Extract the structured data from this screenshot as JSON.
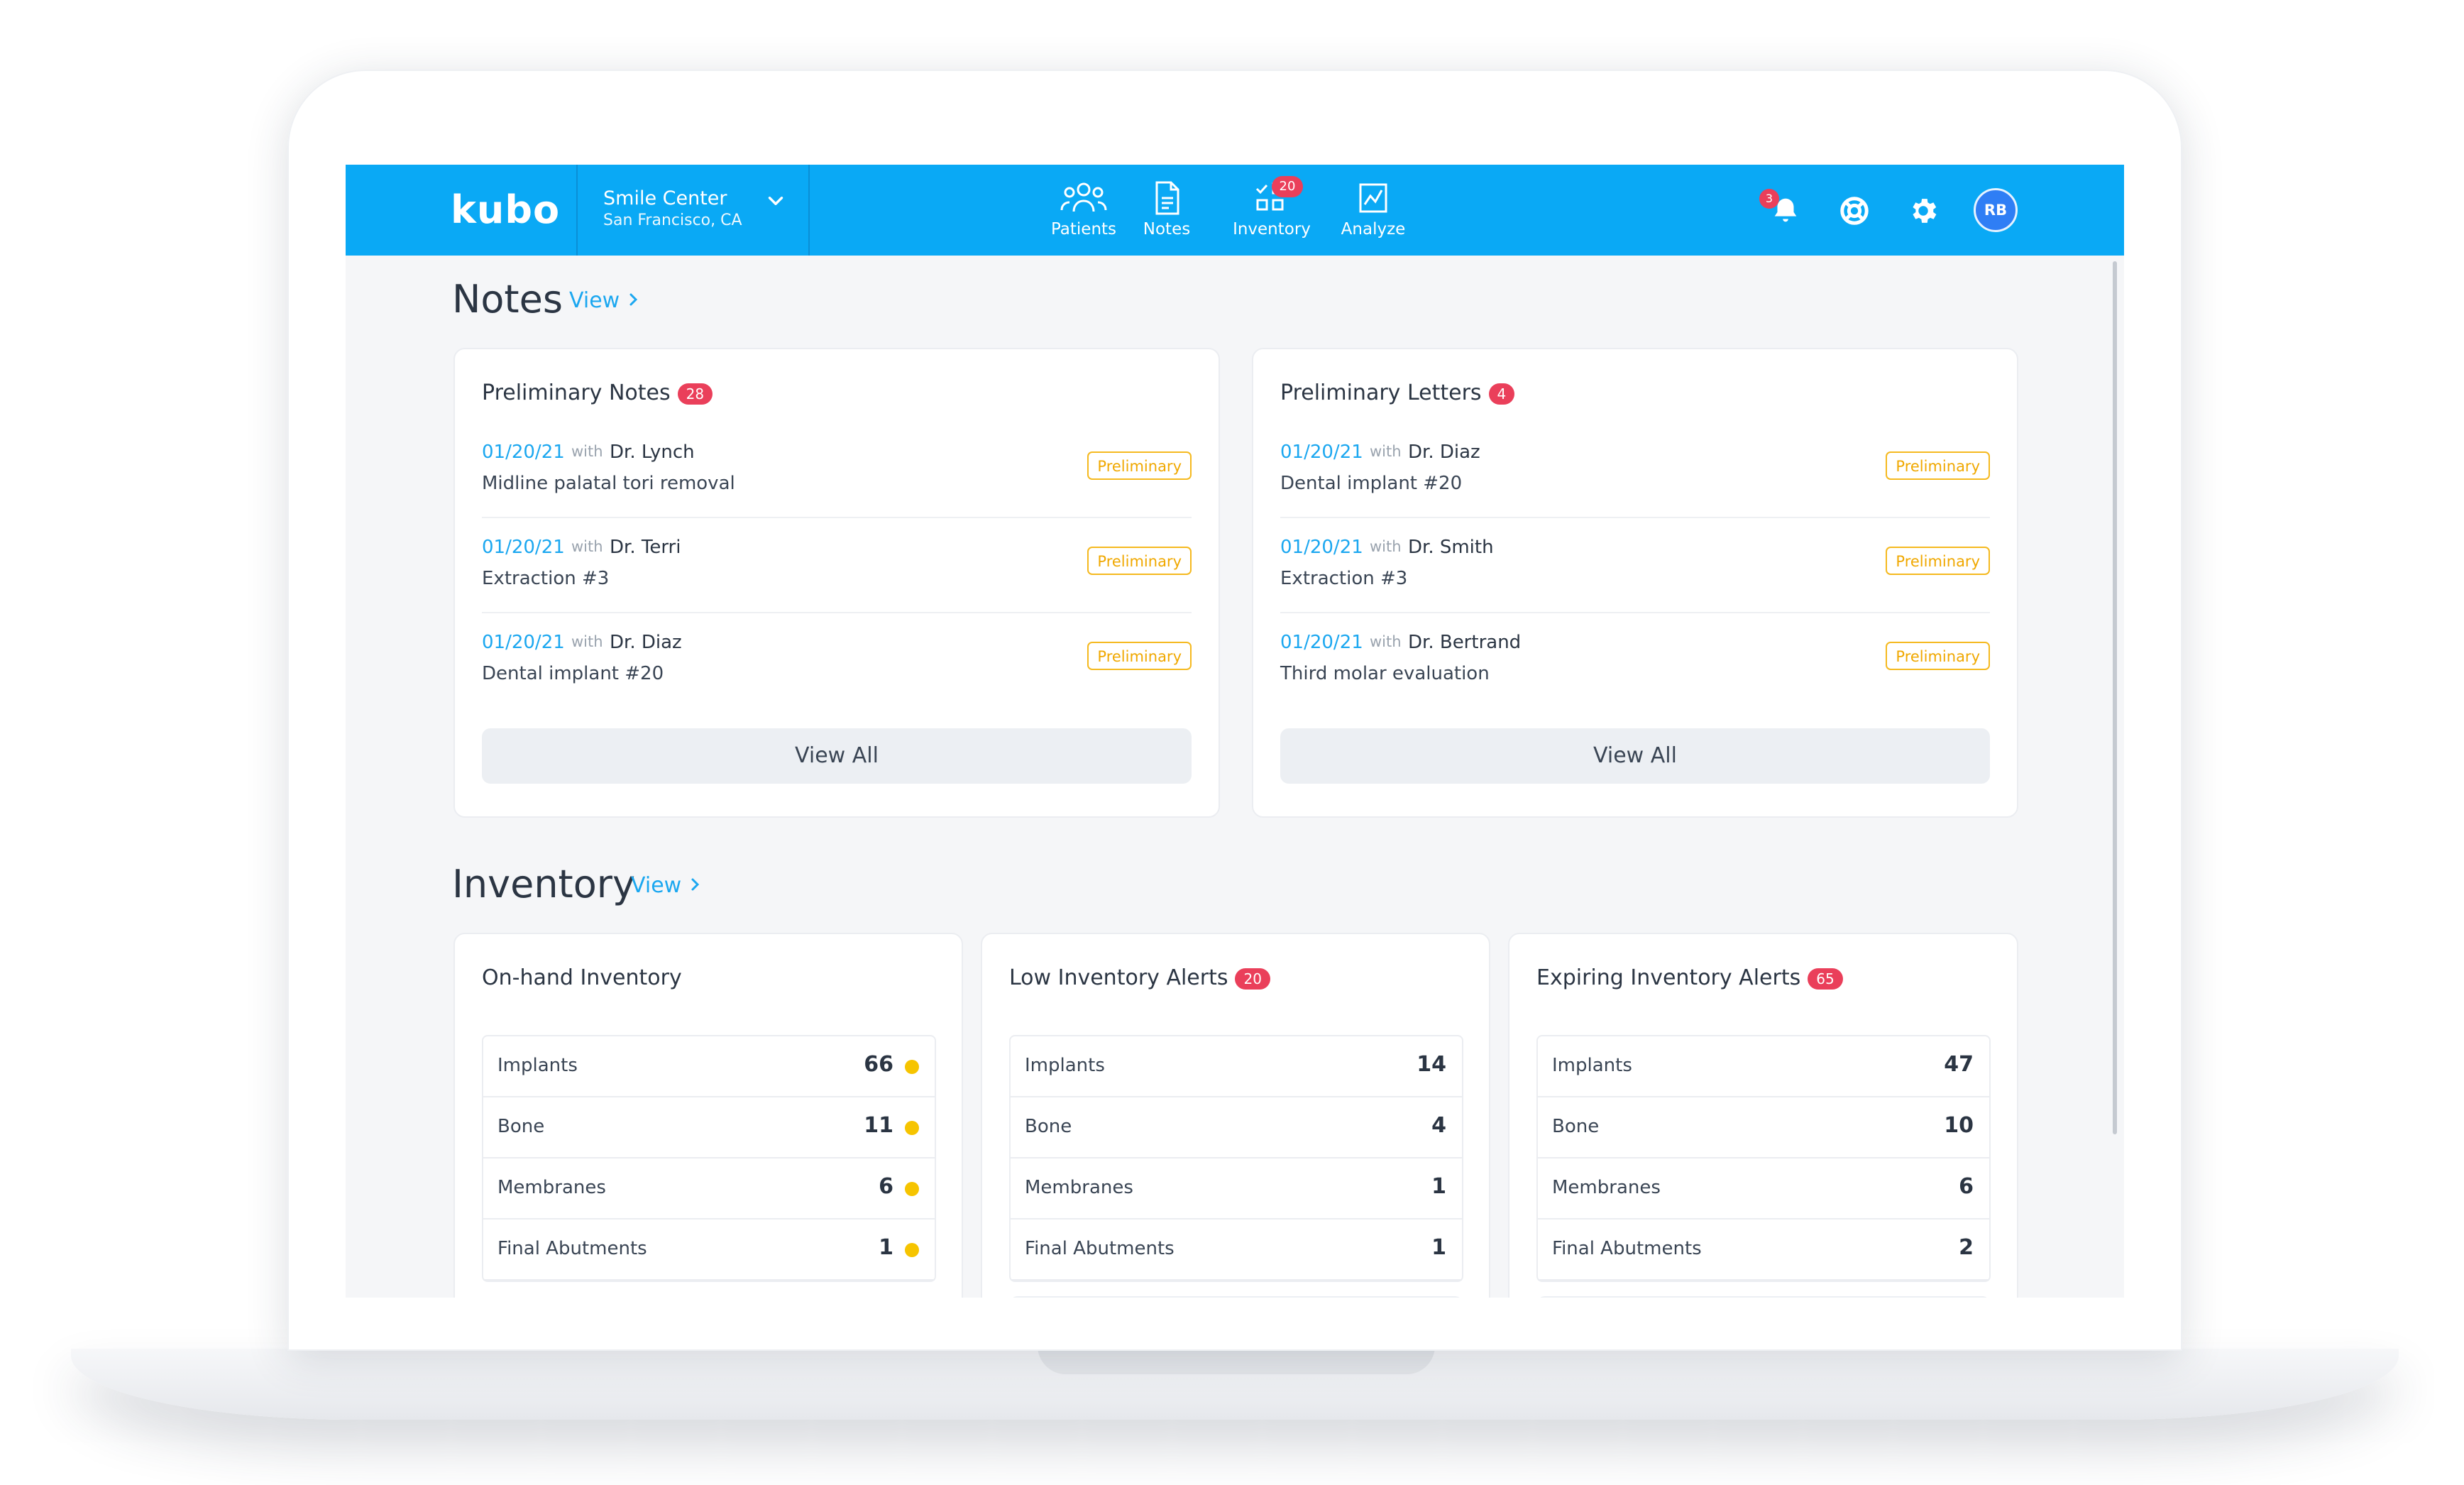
{
  "colors": {
    "accent": "#0aa9f5",
    "link": "#1ba7f0",
    "badge": "#ea3f5a",
    "preliminary": "#f5b91f",
    "stock_dot": "#f6c400"
  },
  "header": {
    "logo": "kubo",
    "clinic": {
      "name": "Smile Center",
      "location": "San Francisco, CA",
      "icon": "chevron-down-icon"
    },
    "nav": [
      {
        "label": "Patients",
        "icon": "patients-icon"
      },
      {
        "label": "Notes",
        "icon": "notes-icon"
      },
      {
        "label": "Inventory",
        "icon": "inventory-icon",
        "badge": "20"
      },
      {
        "label": "Analyze",
        "icon": "analyze-icon"
      }
    ],
    "notifications_badge": "3",
    "avatar": "RB"
  },
  "notes": {
    "title": "Notes",
    "link": "View",
    "cards": [
      {
        "title": "Preliminary Notes",
        "badge": "28",
        "rows": [
          {
            "date": "01/20/21",
            "with": "with",
            "doctor": "Dr. Lynch",
            "desc": "Midline palatal tori removal",
            "status": "Preliminary"
          },
          {
            "date": "01/20/21",
            "with": "with",
            "doctor": "Dr. Terri",
            "desc": "Extraction #3",
            "status": "Preliminary"
          },
          {
            "date": "01/20/21",
            "with": "with",
            "doctor": "Dr. Diaz",
            "desc": "Dental implant #20",
            "status": "Preliminary"
          }
        ],
        "button": "View All"
      },
      {
        "title": "Preliminary Letters",
        "badge": "4",
        "rows": [
          {
            "date": "01/20/21",
            "with": "with",
            "doctor": "Dr. Diaz",
            "desc": "Dental implant #20",
            "status": "Preliminary"
          },
          {
            "date": "01/20/21",
            "with": "with",
            "doctor": "Dr. Smith",
            "desc": "Extraction #3",
            "status": "Preliminary"
          },
          {
            "date": "01/20/21",
            "with": "with",
            "doctor": "Dr. Bertrand",
            "desc": "Third molar evaluation",
            "status": "Preliminary"
          }
        ],
        "button": "View All"
      }
    ]
  },
  "inventory": {
    "title": "Inventory",
    "link": "View",
    "cards": [
      {
        "title": "On-hand Inventory",
        "badge": "",
        "rows": [
          {
            "label": "Implants",
            "count": "66"
          },
          {
            "label": "Bone",
            "count": "11"
          },
          {
            "label": "Membranes",
            "count": "6"
          },
          {
            "label": "Final Abutments",
            "count": "1"
          }
        ]
      },
      {
        "title": "Low Inventory Alerts",
        "badge": "20",
        "rows": [
          {
            "label": "Implants",
            "count": "14"
          },
          {
            "label": "Bone",
            "count": "4"
          },
          {
            "label": "Membranes",
            "count": "1"
          },
          {
            "label": "Final Abutments",
            "count": "1"
          }
        ]
      },
      {
        "title": "Expiring Inventory Alerts",
        "badge": "65",
        "rows": [
          {
            "label": "Implants",
            "count": "47"
          },
          {
            "label": "Bone",
            "count": "10"
          },
          {
            "label": "Membranes",
            "count": "6"
          },
          {
            "label": "Final Abutments",
            "count": "2"
          }
        ]
      }
    ]
  }
}
